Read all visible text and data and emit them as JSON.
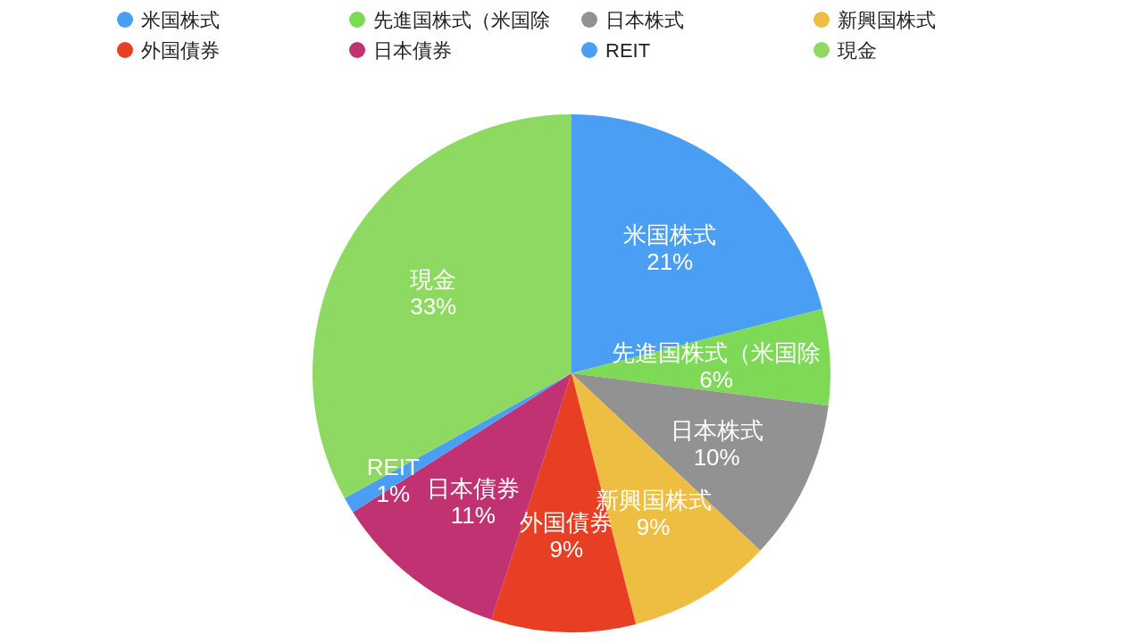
{
  "chart_data": {
    "type": "pie",
    "categories": [
      "米国株式",
      "先進国株式（米国除",
      "日本株式",
      "新興国株式",
      "外国債券",
      "日本債券",
      "REIT",
      "現金"
    ],
    "values": [
      21,
      6,
      10,
      9,
      9,
      11,
      1,
      33
    ],
    "colors": [
      "#4a9ff5",
      "#7ed957",
      "#929292",
      "#eebe42",
      "#e83f24",
      "#c03272",
      "#4a9ff5",
      "#8ed962"
    ],
    "value_labels": [
      "21%",
      "6%",
      "10%",
      "9%",
      "9%",
      "11%",
      "1%",
      "33%"
    ],
    "legend": "top"
  }
}
